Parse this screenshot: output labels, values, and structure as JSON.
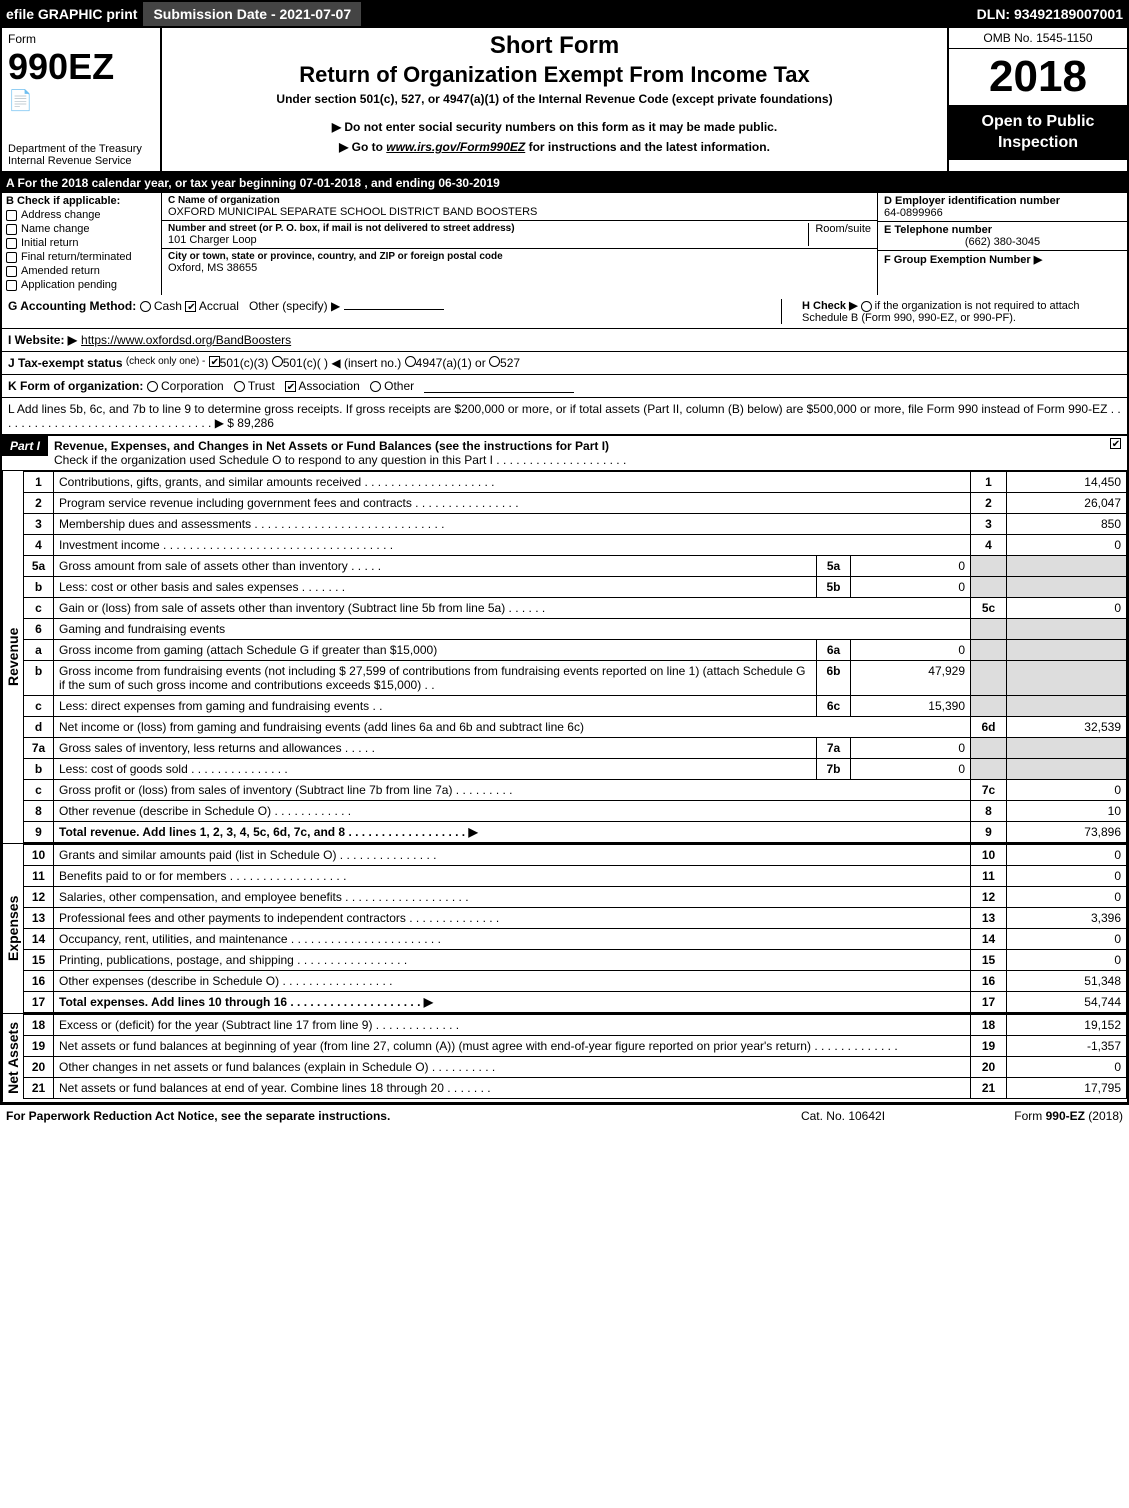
{
  "top_bar": {
    "efile": "efile GRAPHIC print",
    "submission": "Submission Date - 2021-07-07",
    "dln": "DLN: 93492189007001"
  },
  "header": {
    "form_label": "Form",
    "form_number": "990EZ",
    "doc_emoji": "📄",
    "dept": "Department of the Treasury",
    "irs": "Internal Revenue Service",
    "short_form": "Short Form",
    "return_title": "Return of Organization Exempt From Income Tax",
    "under_section": "Under section 501(c), 527, or 4947(a)(1) of the Internal Revenue Code (except private foundations)",
    "do_not": "▶ Do not enter social security numbers on this form as it may be made public.",
    "goto_prefix": "▶ Go to ",
    "goto_link": "www.irs.gov/Form990EZ",
    "goto_suffix": " for instructions and the latest information.",
    "omb": "OMB No. 1545-1150",
    "year": "2018",
    "open_public": "Open to Public Inspection"
  },
  "calendar": "A For the 2018 calendar year, or tax year beginning 07-01-2018          , and ending 06-30-2019",
  "section_b": {
    "label": "B Check if applicable:",
    "options": [
      "Address change",
      "Name change",
      "Initial return",
      "Final return/terminated",
      "Amended return",
      "Application pending"
    ]
  },
  "section_c": {
    "name_label": "C Name of organization",
    "name": "OXFORD MUNICIPAL SEPARATE SCHOOL DISTRICT BAND BOOSTERS",
    "street_label": "Number and street (or P. O. box, if mail is not delivered to street address)",
    "street": "101 Charger Loop",
    "room_label": "Room/suite",
    "city_label": "City or town, state or province, country, and ZIP or foreign postal code",
    "city": "Oxford, MS  38655"
  },
  "section_d": {
    "ein_label": "D Employer identification number",
    "ein": "64-0899966",
    "tel_label": "E Telephone number",
    "tel": "(662) 380-3045",
    "group_label": "F Group Exemption Number  ▶"
  },
  "row_g": {
    "label": "G Accounting Method:",
    "opt_cash": "Cash",
    "opt_accrual": "Accrual",
    "opt_other": "Other (specify) ▶"
  },
  "row_h": {
    "label": "H  Check ▶ ",
    "text": " if the organization is not required to attach Schedule B (Form 990, 990-EZ, or 990-PF)."
  },
  "row_i": {
    "label": "I Website: ▶",
    "url": "https://www.oxfordsd.org/BandBoosters"
  },
  "row_j": {
    "label": "J Tax-exempt status",
    "sub": "(check only one) -",
    "opt1": "501(c)(3)",
    "opt2": "501(c)(  )",
    "insert": "◀ (insert no.)",
    "opt3": "4947(a)(1) or",
    "opt4": "527"
  },
  "row_k": {
    "label": "K Form of organization:",
    "opts": [
      "Corporation",
      "Trust",
      "Association",
      "Other"
    ],
    "checked_index": 2
  },
  "row_l": {
    "text": "L Add lines 5b, 6c, and 7b to line 9 to determine gross receipts. If gross receipts are $200,000 or more, or if total assets (Part II, column (B) below) are $500,000 or more, file Form 990 instead of Form 990-EZ . . . . . . . . . . . . . . . . . . . . . . . . . . . . . . . . . ▶ $ 89,286"
  },
  "part1": {
    "tab": "Part I",
    "title": "Revenue, Expenses, and Changes in Net Assets or Fund Balances (see the instructions for Part I)",
    "subtitle": "Check if the organization used Schedule O to respond to any question in this Part I . . . . . . . . . . . . . . . . . . . .",
    "sub_checked": true
  },
  "groups": [
    {
      "vlabel": "Revenue",
      "rows": [
        {
          "n": "1",
          "d": "Contributions, gifts, grants, and similar amounts received . . . . . . . . . . . . . . . . . . . .",
          "ref": "1",
          "amt": "14,450"
        },
        {
          "n": "2",
          "d": "Program service revenue including government fees and contracts . . . . . . . . . . . . . . . .",
          "ref": "2",
          "amt": "26,047"
        },
        {
          "n": "3",
          "d": "Membership dues and assessments . . . . . . . . . . . . . . . . . . . . . . . . . . . . .",
          "ref": "3",
          "amt": "850"
        },
        {
          "n": "4",
          "d": "Investment income . . . . . . . . . . . . . . . . . . . . . . . . . . . . . . . . . . .",
          "ref": "4",
          "amt": "0"
        },
        {
          "n": "5a",
          "d": "Gross amount from sale of assets other than inventory . . . . .",
          "mn": "5a",
          "mv": "0",
          "shaded": true
        },
        {
          "n": "b",
          "d": "Less: cost or other basis and sales expenses . . . . . . .",
          "mn": "5b",
          "mv": "0",
          "shaded": true
        },
        {
          "n": "c",
          "d": "Gain or (loss) from sale of assets other than inventory (Subtract line 5b from line 5a) . . . . . .",
          "ref": "5c",
          "amt": "0"
        },
        {
          "n": "6",
          "d": "Gaming and fundraising events",
          "shaded": true,
          "noref": true
        },
        {
          "n": "a",
          "d": "Gross income from gaming (attach Schedule G if greater than $15,000)",
          "mn": "6a",
          "mv": "0",
          "shaded": true
        },
        {
          "n": "b",
          "d": "Gross income from fundraising events (not including $  27,599        of contributions from fundraising events reported on line 1) (attach Schedule G if the sum of such gross income and contributions exceeds $15,000)   . .",
          "mn": "6b",
          "mv": "47,929",
          "shaded": true,
          "multiline": true
        },
        {
          "n": "c",
          "d": "Less: direct expenses from gaming and fundraising events      . .",
          "mn": "6c",
          "mv": "15,390",
          "shaded": true
        },
        {
          "n": "d",
          "d": "Net income or (loss) from gaming and fundraising events (add lines 6a and 6b and subtract line 6c)",
          "ref": "6d",
          "amt": "32,539"
        },
        {
          "n": "7a",
          "d": "Gross sales of inventory, less returns and allowances . . . . .",
          "mn": "7a",
          "mv": "0",
          "shaded": true
        },
        {
          "n": "b",
          "d": "Less: cost of goods sold         . . . . . . . . . . . . . . .",
          "mn": "7b",
          "mv": "0",
          "shaded": true
        },
        {
          "n": "c",
          "d": "Gross profit or (loss) from sales of inventory (Subtract line 7b from line 7a) . . . . . . . . .",
          "ref": "7c",
          "amt": "0"
        },
        {
          "n": "8",
          "d": "Other revenue (describe in Schedule O)                  . . . . . . . . . . . .",
          "ref": "8",
          "amt": "10"
        },
        {
          "n": "9",
          "d": "Total revenue. Add lines 1, 2, 3, 4, 5c, 6d, 7c, and 8 . . . . . . . . . . . . . . . . . .  ▶",
          "ref": "9",
          "amt": "73,896",
          "bold": true
        }
      ]
    },
    {
      "vlabel": "Expenses",
      "rows": [
        {
          "n": "10",
          "d": "Grants and similar amounts paid (list in Schedule O)     . . . . . . . . . . . . . . .",
          "ref": "10",
          "amt": "0"
        },
        {
          "n": "11",
          "d": "Benefits paid to or for members            . . . . . . . . . . . . . . . . . .",
          "ref": "11",
          "amt": "0"
        },
        {
          "n": "12",
          "d": "Salaries, other compensation, and employee benefits . . . . . . . . . . . . . . . . . . .",
          "ref": "12",
          "amt": "0"
        },
        {
          "n": "13",
          "d": "Professional fees and other payments to independent contractors . . . . . . . . . . . . . .",
          "ref": "13",
          "amt": "3,396"
        },
        {
          "n": "14",
          "d": "Occupancy, rent, utilities, and maintenance . . . . . . . . . . . . . . . . . . . . . . .",
          "ref": "14",
          "amt": "0"
        },
        {
          "n": "15",
          "d": "Printing, publications, postage, and shipping       . . . . . . . . . . . . . . . . .",
          "ref": "15",
          "amt": "0"
        },
        {
          "n": "16",
          "d": "Other expenses (describe in Schedule O)         . . . . . . . . . . . . . . . . .",
          "ref": "16",
          "amt": "51,348"
        },
        {
          "n": "17",
          "d": "Total expenses. Add lines 10 through 16     . . . . . . . . . . . . . . . . . . . .  ▶",
          "ref": "17",
          "amt": "54,744",
          "bold": true
        }
      ]
    },
    {
      "vlabel": "Net Assets",
      "rows": [
        {
          "n": "18",
          "d": "Excess or (deficit) for the year (Subtract line 17 from line 9)    . . . . . . . . . . . . .",
          "ref": "18",
          "amt": "19,152"
        },
        {
          "n": "19",
          "d": "Net assets or fund balances at beginning of year (from line 27, column (A)) (must agree with end-of-year figure reported on prior year's return)         . . . . . . . . . . . . .",
          "ref": "19",
          "amt": "-1,357",
          "multiline": true
        },
        {
          "n": "20",
          "d": "Other changes in net assets or fund balances (explain in Schedule O)   . . . . . . . . . .",
          "ref": "20",
          "amt": "0"
        },
        {
          "n": "21",
          "d": "Net assets or fund balances at end of year. Combine lines 18 through 20     . . . . . . .",
          "ref": "21",
          "amt": "17,795"
        }
      ]
    }
  ],
  "footer": {
    "left": "For Paperwork Reduction Act Notice, see the separate instructions.",
    "mid": "Cat. No. 10642I",
    "right_prefix": "Form ",
    "right_form": "990-EZ",
    "right_suffix": " (2018)"
  },
  "colors": {
    "black": "#000000",
    "white": "#ffffff",
    "dark_gray": "#444444",
    "shade": "#dddddd"
  }
}
